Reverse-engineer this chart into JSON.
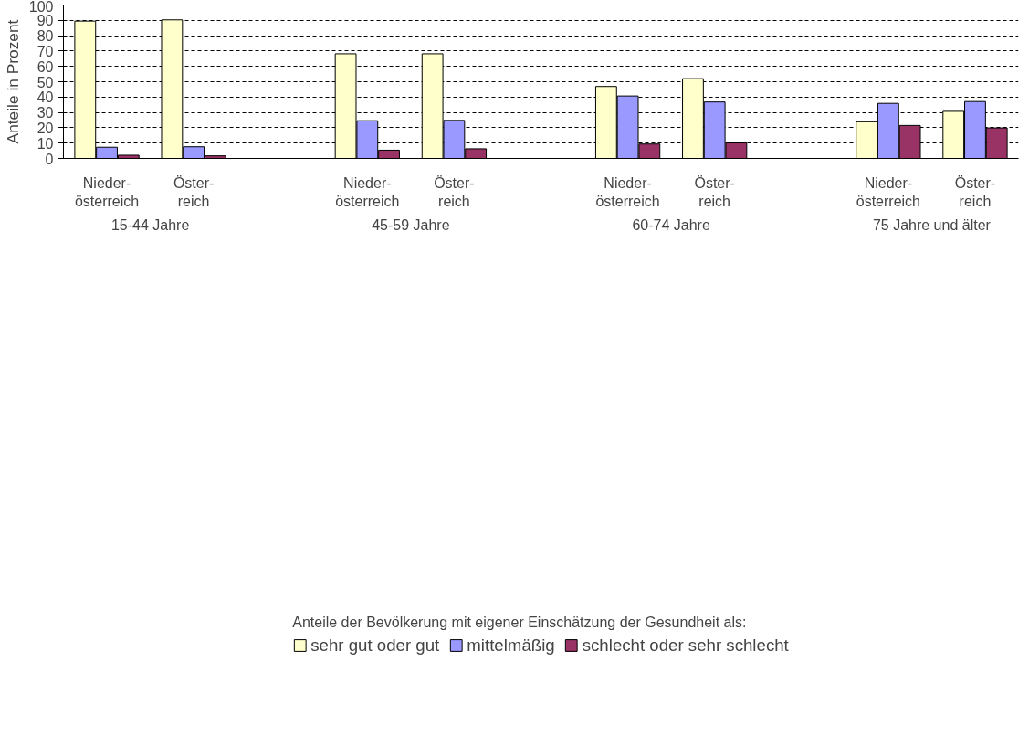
{
  "chart_data": {
    "type": "bar",
    "ylabel": "Anteile in Prozent",
    "legend_title": "Anteile der Bevölkerung mit eigener Einschätzung der Gesundheit als:",
    "categories": [
      "Nieder-\nösterreich",
      "Öster-\nreich",
      null,
      "Nieder-\nösterreich",
      "Öster-\nreich",
      null,
      "Nieder-\nösterreich",
      "Öster-\nreich",
      null,
      "Nieder-\nösterreich",
      "Öster-\nreich"
    ],
    "series": [
      {
        "name": "sehr gut oder gut",
        "color": "#ffffcc",
        "values": [
          89.5,
          90.3,
          null,
          68.2,
          68.2,
          null,
          46.9,
          52.0,
          null,
          23.9,
          30.7
        ]
      },
      {
        "name": "mittelmäßig",
        "color": "#9999ff",
        "values": [
          7.3,
          7.6,
          null,
          24.6,
          24.8,
          null,
          40.7,
          36.8,
          null,
          35.9,
          37.1
        ]
      },
      {
        "name": "schlecht oder sehr schlecht",
        "color": "#993366",
        "values": [
          2.1,
          1.7,
          null,
          5.4,
          6.3,
          null,
          9.4,
          10.1,
          null,
          21.5,
          19.9
        ]
      }
    ],
    "annotations": [
      "15-44 Jahre",
      "45-59 Jahre",
      "60-74 Jahre",
      "75 Jahre und älter"
    ],
    "ylim": [
      0,
      100
    ],
    "yticks": [
      0,
      10,
      20,
      30,
      40,
      50,
      60,
      70,
      80,
      90,
      100
    ],
    "grid": "y",
    "legend": "bottom"
  }
}
